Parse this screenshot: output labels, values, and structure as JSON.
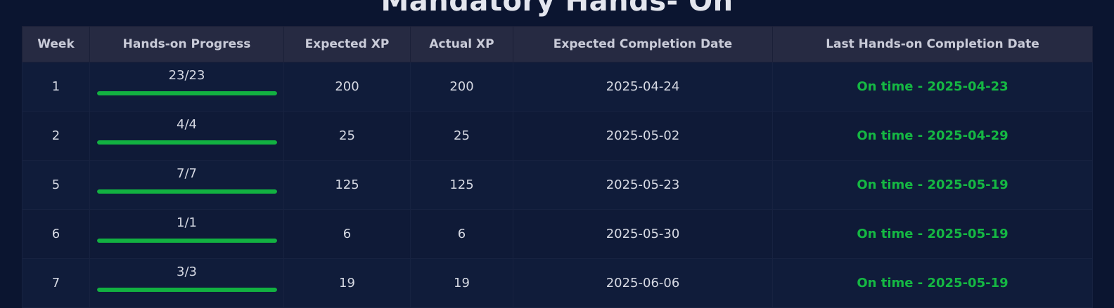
{
  "page": {
    "title": "Mandatory Hands- On"
  },
  "colors": {
    "background": "#0b1530",
    "header_bg": "#262a42",
    "progress_fill": "#12b141",
    "status_on_time": "#15b843"
  },
  "table": {
    "headers": [
      "Week",
      "Hands-on Progress",
      "Expected XP",
      "Actual XP",
      "Expected Completion Date",
      "Last Hands-on Completion Date"
    ],
    "rows": [
      {
        "week": "1",
        "progress": "23/23",
        "progress_fraction": 1.0,
        "expected_xp": "200",
        "actual_xp": "200",
        "expected_date": "2025-04-24",
        "last_completion": "On time - 2025-04-23"
      },
      {
        "week": "2",
        "progress": "4/4",
        "progress_fraction": 1.0,
        "expected_xp": "25",
        "actual_xp": "25",
        "expected_date": "2025-05-02",
        "last_completion": "On time - 2025-04-29"
      },
      {
        "week": "5",
        "progress": "7/7",
        "progress_fraction": 1.0,
        "expected_xp": "125",
        "actual_xp": "125",
        "expected_date": "2025-05-23",
        "last_completion": "On time - 2025-05-19"
      },
      {
        "week": "6",
        "progress": "1/1",
        "progress_fraction": 1.0,
        "expected_xp": "6",
        "actual_xp": "6",
        "expected_date": "2025-05-30",
        "last_completion": "On time - 2025-05-19"
      },
      {
        "week": "7",
        "progress": "3/3",
        "progress_fraction": 1.0,
        "expected_xp": "19",
        "actual_xp": "19",
        "expected_date": "2025-06-06",
        "last_completion": "On time - 2025-05-19"
      }
    ]
  }
}
